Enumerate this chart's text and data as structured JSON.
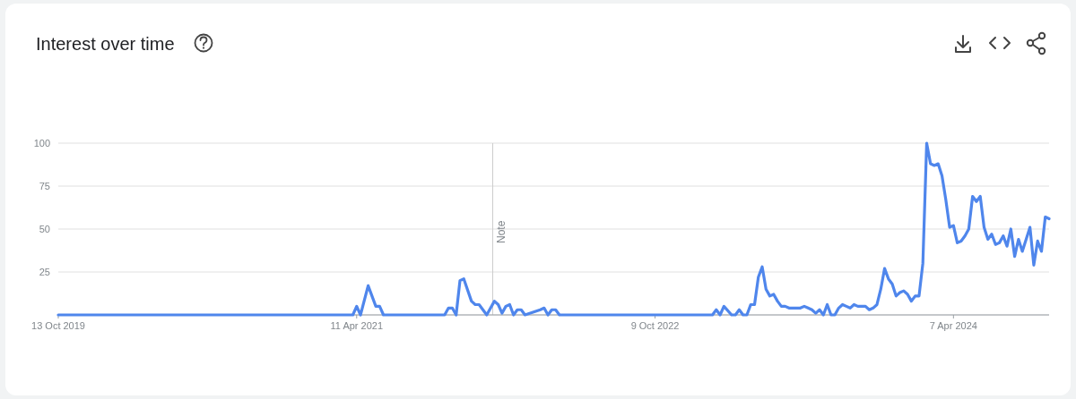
{
  "chart_data": {
    "type": "line",
    "title": "Interest over time",
    "x": [
      "2019-10-13",
      "2021-04-04",
      "2021-04-11",
      "2021-04-18",
      "2021-05-02",
      "2021-05-16",
      "2021-05-23",
      "2021-05-30",
      "2021-09-19",
      "2021-09-26",
      "2021-10-03",
      "2021-10-10",
      "2021-10-17",
      "2021-10-24",
      "2021-11-07",
      "2021-11-14",
      "2021-11-21",
      "2021-11-28",
      "2021-12-05",
      "2021-12-19",
      "2021-12-26",
      "2022-01-02",
      "2022-01-09",
      "2022-01-16",
      "2022-01-23",
      "2022-01-30",
      "2022-02-06",
      "2022-02-13",
      "2022-03-13",
      "2022-03-20",
      "2022-03-27",
      "2022-04-03",
      "2022-04-10",
      "2022-04-17",
      "2023-01-22",
      "2023-01-29",
      "2023-02-05",
      "2023-02-12",
      "2023-02-26",
      "2023-03-05",
      "2023-03-12",
      "2023-03-19",
      "2023-03-26",
      "2023-04-02",
      "2023-04-09",
      "2023-04-16",
      "2023-04-23",
      "2023-04-30",
      "2023-05-07",
      "2023-05-14",
      "2023-05-21",
      "2023-05-28",
      "2023-06-04",
      "2023-06-11",
      "2023-07-02",
      "2023-07-09",
      "2023-07-16",
      "2023-07-23",
      "2023-07-30",
      "2023-08-06",
      "2023-08-13",
      "2023-08-20",
      "2023-08-27",
      "2023-09-03",
      "2023-09-10",
      "2023-09-17",
      "2023-09-24",
      "2023-10-01",
      "2023-10-08",
      "2023-10-15",
      "2023-10-29",
      "2023-11-05",
      "2023-11-12",
      "2023-11-19",
      "2023-11-26",
      "2023-12-03",
      "2023-12-10",
      "2023-12-17",
      "2023-12-24",
      "2023-12-31",
      "2024-01-07",
      "2024-01-14",
      "2024-01-21",
      "2024-01-28",
      "2024-02-04",
      "2024-02-11",
      "2024-02-18",
      "2024-02-25",
      "2024-03-03",
      "2024-03-10",
      "2024-03-17",
      "2024-03-24",
      "2024-03-31",
      "2024-04-07",
      "2024-04-14",
      "2024-04-21",
      "2024-04-28",
      "2024-05-05",
      "2024-05-12",
      "2024-05-19",
      "2024-05-26",
      "2024-06-02",
      "2024-06-09",
      "2024-06-16",
      "2024-06-23",
      "2024-06-30",
      "2024-07-07",
      "2024-07-14",
      "2024-07-21",
      "2024-07-28",
      "2024-08-04",
      "2024-08-11",
      "2024-08-18",
      "2024-08-25",
      "2024-09-01",
      "2024-09-08",
      "2024-09-15",
      "2024-09-22",
      "2024-09-29"
    ],
    "series": [
      {
        "color": "#4f86ec",
        "values": [
          0,
          0,
          5,
          0,
          17,
          5,
          5,
          0,
          0,
          4,
          4,
          0,
          20,
          21,
          8,
          6,
          6,
          3,
          0,
          8,
          6,
          1,
          5,
          6,
          0,
          3,
          3,
          0,
          3,
          4,
          0,
          3,
          3,
          0,
          0,
          3,
          0,
          5,
          0,
          0,
          3,
          0,
          0,
          6,
          6,
          22,
          28,
          15,
          11,
          12,
          8,
          5,
          5,
          4,
          4,
          5,
          4,
          3,
          1,
          3,
          0,
          6,
          0,
          0,
          4,
          6,
          5,
          4,
          6,
          5,
          5,
          3,
          4,
          6,
          15,
          27,
          21,
          18,
          11,
          13,
          14,
          12,
          8,
          11,
          11,
          30,
          100,
          88,
          87,
          88,
          81,
          67,
          51,
          52,
          42,
          43,
          46,
          50,
          69,
          66,
          69,
          51,
          44,
          47,
          41,
          42,
          46,
          40,
          50,
          34,
          44,
          37,
          44,
          51,
          29,
          43,
          37,
          57,
          56
        ]
      }
    ],
    "xlim": [
      "2019-10-13",
      "2024-09-29"
    ],
    "xticks": [
      {
        "value": "2019-10-13",
        "label": "13 Oct 2019"
      },
      {
        "value": "2021-04-11",
        "label": "11 Apr 2021"
      },
      {
        "value": "2022-10-09",
        "label": "9 Oct 2022"
      },
      {
        "value": "2024-04-07",
        "label": "7 Apr 2024"
      }
    ],
    "ylim": [
      0,
      100
    ],
    "yticks": [
      {
        "value": 0,
        "label": null
      },
      25,
      50,
      75,
      100
    ],
    "grid": "y",
    "marker": "none",
    "line_style": "solid",
    "ref_lines": [
      {
        "axis": "x",
        "value": "2021-12-16",
        "label": "Note",
        "color": "#cccccc"
      }
    ]
  }
}
